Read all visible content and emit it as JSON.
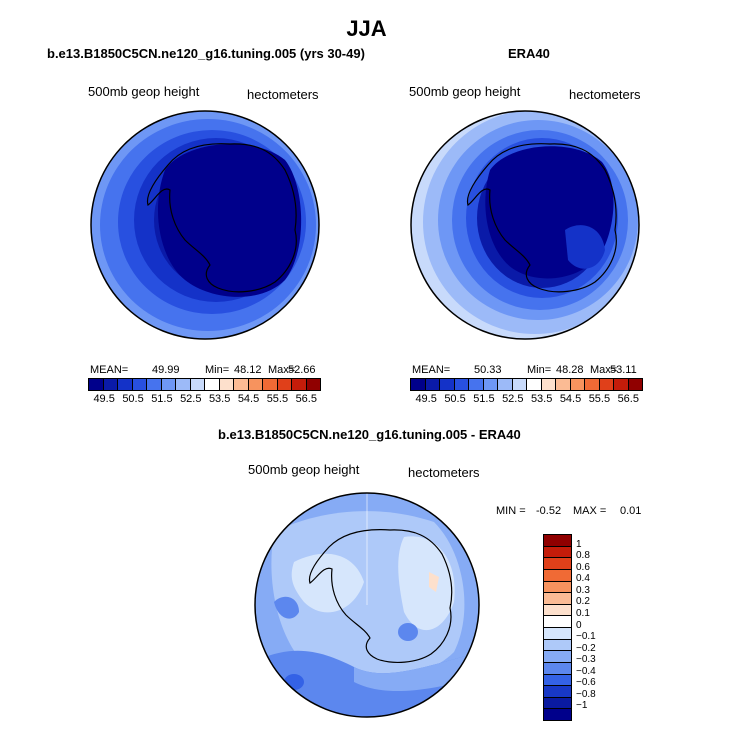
{
  "season": "JJA",
  "top_left": {
    "title": "b.e13.B1850C5CN.ne120_g16.tuning.005 (yrs 30-49)",
    "left_label": "500mb geop height",
    "right_label": "hectometers",
    "mean_label": "MEAN=",
    "mean_value": "49.99",
    "min_label": "Min=",
    "min_value": "48.12",
    "max_label": "Max=",
    "max_value": "52.66"
  },
  "top_right": {
    "title": "ERA40",
    "left_label": "500mb geop height",
    "right_label": "hectometers",
    "mean_label": "MEAN=",
    "mean_value": "50.33",
    "min_label": "Min=",
    "min_value": "48.28",
    "max_label": "Max=",
    "max_value": "53.11"
  },
  "abs_colorbar": {
    "ticks": [
      "49.5",
      "50.5",
      "51.5",
      "52.5",
      "53.5",
      "54.5",
      "55.5",
      "56.5"
    ],
    "colors": [
      "#00008b",
      "#0a1aa8",
      "#1432c8",
      "#2850e0",
      "#4673ee",
      "#6e97f5",
      "#9cbaf8",
      "#c8dafb",
      "#ffffff",
      "#fde0cc",
      "#fbbb94",
      "#f7935e",
      "#f06a35",
      "#e0401a",
      "#c41c0a",
      "#900000"
    ]
  },
  "diff": {
    "title": "b.e13.B1850C5CN.ne120_g16.tuning.005 - ERA40",
    "left_label": "500mb geop height",
    "right_label": "hectometers",
    "min_label": "MIN =",
    "min_value": "-0.52",
    "max_label": "MAX =",
    "max_value": "0.01",
    "ticks": [
      "1",
      "0.8",
      "0.6",
      "0.4",
      "0.3",
      "0.2",
      "0.1",
      "0",
      "−0.1",
      "−0.2",
      "−0.3",
      "−0.4",
      "−0.6",
      "−0.8",
      "−1"
    ],
    "colors": [
      "#900000",
      "#c41c0a",
      "#e0401a",
      "#f06a35",
      "#f7935e",
      "#fbbb94",
      "#fde0cc",
      "#ffffff",
      "#d6e6fc",
      "#aec9f9",
      "#86abf5",
      "#5c87ee",
      "#3462e6",
      "#1838c6",
      "#0a1aa0",
      "#00008b"
    ]
  }
}
